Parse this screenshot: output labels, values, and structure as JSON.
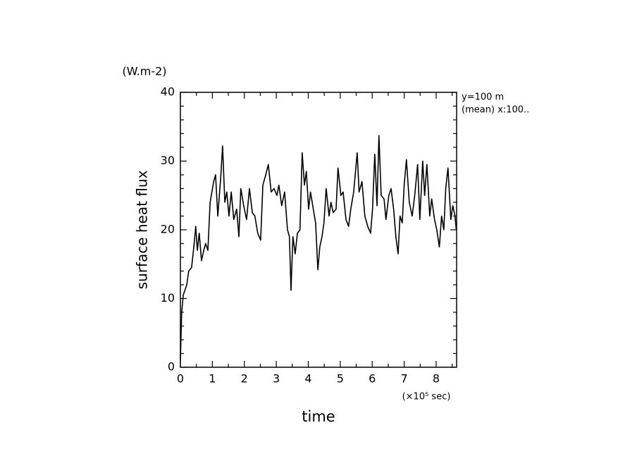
{
  "chart_data": {
    "type": "line",
    "y_unit": "(W.m-2)",
    "ylabel": "surface heat flux",
    "xlabel": "time",
    "x_unit": "(×10⁵ sec)",
    "annotations": [
      "y=100 m",
      "(mean) x:100.."
    ],
    "color": "#000000",
    "x": [
      0,
      0.04,
      0.09,
      0.2,
      0.26,
      0.35,
      0.42,
      0.48,
      0.53,
      0.59,
      0.66,
      0.73,
      0.79,
      0.86,
      0.93,
      1.04,
      1.1,
      1.17,
      1.26,
      1.32,
      1.39,
      1.45,
      1.52,
      1.59,
      1.67,
      1.76,
      1.83,
      1.89,
      1.98,
      2.07,
      2.16,
      2.25,
      2.33,
      2.42,
      2.51,
      2.58,
      2.67,
      2.75,
      2.84,
      2.93,
      3.02,
      3.08,
      3.17,
      3.26,
      3.35,
      3.41,
      3.46,
      3.52,
      3.59,
      3.66,
      3.74,
      3.81,
      3.88,
      3.94,
      4.01,
      4.07,
      4.14,
      4.23,
      4.3,
      4.36,
      4.43,
      4.49,
      4.56,
      4.65,
      4.71,
      4.78,
      4.87,
      4.93,
      5.02,
      5.09,
      5.18,
      5.26,
      5.33,
      5.42,
      5.53,
      5.59,
      5.68,
      5.77,
      5.86,
      5.95,
      6.01,
      6.08,
      6.15,
      6.21,
      6.28,
      6.37,
      6.43,
      6.52,
      6.59,
      6.67,
      6.74,
      6.81,
      6.87,
      6.94,
      7.0,
      7.07,
      7.16,
      7.25,
      7.33,
      7.42,
      7.49,
      7.58,
      7.64,
      7.71,
      7.8,
      7.86,
      7.95,
      8.02,
      8.1,
      8.17,
      8.24,
      8.3,
      8.37,
      8.46,
      8.52,
      8.59,
      8.63
    ],
    "values": [
      1,
      8,
      10.5,
      12,
      14,
      14.5,
      17.5,
      20.5,
      17,
      19.5,
      15.5,
      17,
      18,
      17,
      24,
      27,
      28,
      22,
      27.5,
      32.2,
      24,
      25.5,
      22,
      25.5,
      21.5,
      23,
      19,
      26,
      23.5,
      21.5,
      26,
      22.5,
      22,
      19.5,
      18.5,
      26.5,
      28,
      29.5,
      25.5,
      26,
      25,
      26.5,
      23.5,
      25.5,
      20,
      19,
      11.2,
      19,
      16.5,
      19.5,
      20,
      31.2,
      26.5,
      28.5,
      23,
      25.5,
      23.5,
      21,
      14.2,
      17.5,
      19,
      21,
      26,
      22,
      24,
      22.5,
      23,
      29,
      25,
      25.5,
      21.5,
      20.5,
      23,
      25.5,
      31.2,
      25.5,
      27,
      22,
      20.5,
      19.5,
      23,
      31,
      23.5,
      33.7,
      25,
      24.5,
      21.5,
      25,
      26,
      23,
      19,
      16.5,
      22,
      21,
      26.5,
      30.2,
      24,
      22,
      25,
      29.5,
      21.5,
      30,
      25,
      29.5,
      22,
      24.5,
      21.5,
      20,
      17.5,
      22,
      20,
      26,
      29,
      21.5,
      23.5,
      22,
      20
    ],
    "xlim": [
      0,
      8.64
    ],
    "ylim": [
      0,
      40
    ],
    "xticks": [
      0,
      1,
      2,
      3,
      4,
      5,
      6,
      7,
      8
    ],
    "yticks": [
      0,
      10,
      20,
      30,
      40
    ],
    "xminorticks": [
      0.5,
      1.5,
      2.5,
      3.5,
      4.5,
      5.5,
      6.5,
      7.5,
      8.5
    ],
    "yminorticks": [
      2,
      4,
      6,
      8,
      12,
      14,
      16,
      18,
      22,
      24,
      26,
      28,
      32,
      34,
      36,
      38
    ]
  }
}
